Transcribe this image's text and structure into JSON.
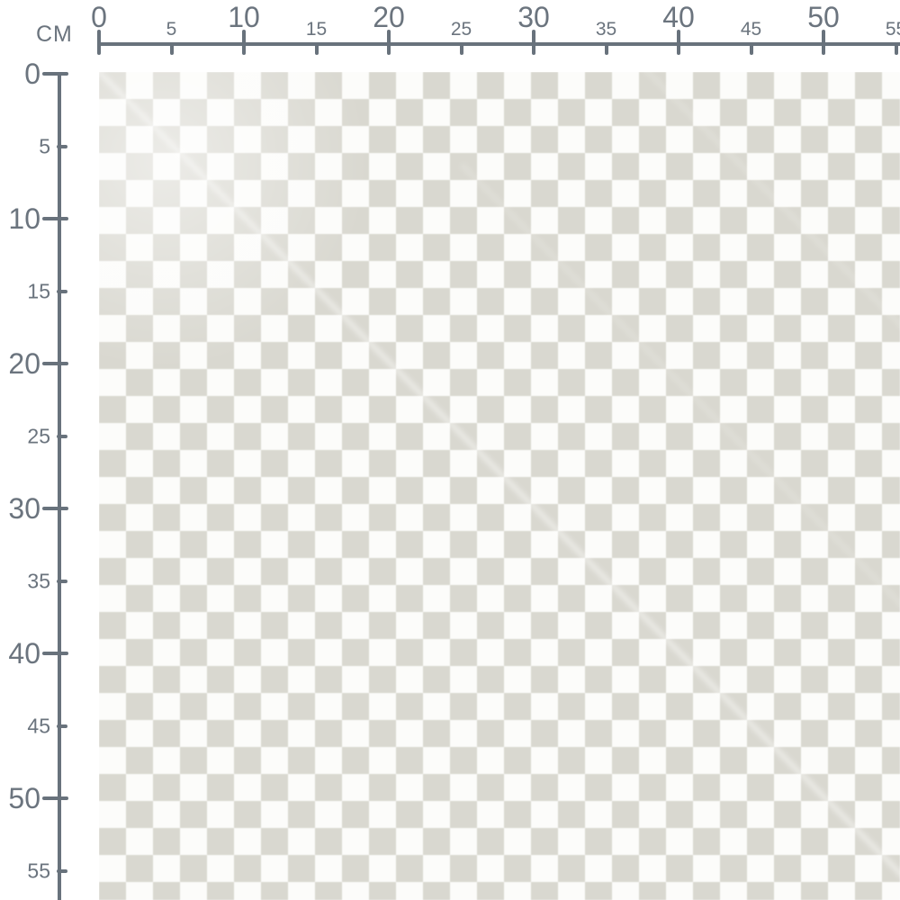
{
  "ruler": {
    "unit_label": "CM",
    "line_color": "#68727c",
    "text_color": "#6b747e",
    "top_ticks": [
      {
        "cm": 0,
        "label": "0",
        "major": true
      },
      {
        "cm": 5,
        "label": "5",
        "major": false
      },
      {
        "cm": 10,
        "label": "10",
        "major": true
      },
      {
        "cm": 15,
        "label": "15",
        "major": false
      },
      {
        "cm": 20,
        "label": "20",
        "major": true
      },
      {
        "cm": 25,
        "label": "25",
        "major": false
      },
      {
        "cm": 30,
        "label": "30",
        "major": true
      },
      {
        "cm": 35,
        "label": "35",
        "major": false
      },
      {
        "cm": 40,
        "label": "40",
        "major": true
      },
      {
        "cm": 45,
        "label": "45",
        "major": false
      },
      {
        "cm": 50,
        "label": "50",
        "major": true
      },
      {
        "cm": 55,
        "label": "55",
        "major": false
      }
    ],
    "left_ticks": [
      {
        "cm": 0,
        "label": "0",
        "major": true
      },
      {
        "cm": 5,
        "label": "5",
        "major": false
      },
      {
        "cm": 10,
        "label": "10",
        "major": true
      },
      {
        "cm": 15,
        "label": "15",
        "major": false
      },
      {
        "cm": 20,
        "label": "20",
        "major": true
      },
      {
        "cm": 25,
        "label": "25",
        "major": false
      },
      {
        "cm": 30,
        "label": "30",
        "major": true
      },
      {
        "cm": 35,
        "label": "35",
        "major": false
      },
      {
        "cm": 40,
        "label": "40",
        "major": true
      },
      {
        "cm": 45,
        "label": "45",
        "major": false
      },
      {
        "cm": 50,
        "label": "50",
        "major": true
      },
      {
        "cm": 55,
        "label": "55",
        "major": false
      }
    ]
  },
  "swatch": {
    "pattern": "checkerboard",
    "square_color": "#d9d8d0",
    "background_color": "#fcfcfa"
  }
}
